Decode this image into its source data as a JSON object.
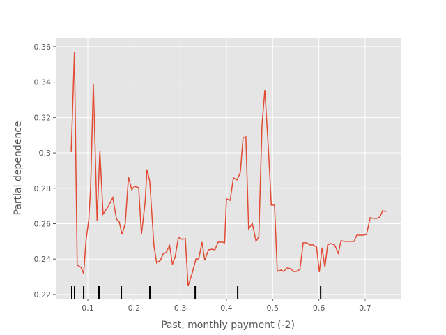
{
  "chart_data": {
    "type": "line",
    "xlabel": "Past, monthly payment (-2)",
    "ylabel": "Partial dependence",
    "color": "#e24a33",
    "grid": true,
    "xlim": [
      0.0306,
      0.777
    ],
    "ylim": [
      0.2176,
      0.3647
    ],
    "xticks": [
      0.1,
      0.2,
      0.3,
      0.4,
      0.5,
      0.6,
      0.7
    ],
    "yticks": [
      0.22,
      0.24,
      0.26,
      0.28,
      0.3,
      0.32,
      0.34,
      0.36
    ],
    "x": [
      0.064,
      0.071,
      0.077,
      0.085,
      0.091,
      0.096,
      0.102,
      0.106,
      0.112,
      0.12,
      0.126,
      0.133,
      0.145,
      0.154,
      0.162,
      0.168,
      0.174,
      0.181,
      0.188,
      0.195,
      0.201,
      0.21,
      0.216,
      0.224,
      0.228,
      0.234,
      0.243,
      0.249,
      0.257,
      0.263,
      0.269,
      0.277,
      0.283,
      0.289,
      0.296,
      0.304,
      0.311,
      0.317,
      0.326,
      0.334,
      0.34,
      0.347,
      0.353,
      0.361,
      0.369,
      0.375,
      0.382,
      0.391,
      0.396,
      0.4,
      0.408,
      0.415,
      0.423,
      0.43,
      0.436,
      0.442,
      0.448,
      0.456,
      0.464,
      0.47,
      0.477,
      0.483,
      0.491,
      0.497,
      0.504,
      0.51,
      0.518,
      0.524,
      0.531,
      0.539,
      0.545,
      0.551,
      0.559,
      0.566,
      0.574,
      0.58,
      0.587,
      0.595,
      0.601,
      0.607,
      0.613,
      0.619,
      0.626,
      0.634,
      0.642,
      0.648,
      0.655,
      0.663,
      0.67,
      0.676,
      0.682,
      0.69,
      0.696,
      0.703,
      0.711,
      0.718,
      0.726,
      0.732,
      0.738,
      0.746
    ],
    "values": [
      0.3005,
      0.3572,
      0.2366,
      0.2354,
      0.2318,
      0.2504,
      0.2622,
      0.28,
      0.3391,
      0.2618,
      0.3012,
      0.2654,
      0.2701,
      0.2748,
      0.2626,
      0.261,
      0.2539,
      0.2602,
      0.2863,
      0.2792,
      0.2811,
      0.2803,
      0.2539,
      0.2721,
      0.2906,
      0.2839,
      0.2476,
      0.2378,
      0.2393,
      0.2429,
      0.2437,
      0.2476,
      0.237,
      0.2413,
      0.2523,
      0.2512,
      0.2515,
      0.2247,
      0.2322,
      0.2401,
      0.2401,
      0.2496,
      0.2393,
      0.2452,
      0.2456,
      0.2452,
      0.2496,
      0.2496,
      0.2492,
      0.274,
      0.2732,
      0.2859,
      0.2847,
      0.289,
      0.3087,
      0.3091,
      0.2571,
      0.2602,
      0.25,
      0.2527,
      0.3162,
      0.3355,
      0.3012,
      0.2705,
      0.2705,
      0.233,
      0.2338,
      0.233,
      0.235,
      0.2346,
      0.233,
      0.233,
      0.2342,
      0.2492,
      0.2492,
      0.248,
      0.248,
      0.2468,
      0.2326,
      0.2464,
      0.2354,
      0.248,
      0.2488,
      0.248,
      0.2433,
      0.2504,
      0.25,
      0.25,
      0.25,
      0.25,
      0.2535,
      0.2535,
      0.2535,
      0.2539,
      0.2634,
      0.263,
      0.263,
      0.2638,
      0.2673,
      0.2669
    ],
    "rug": [
      0.0653,
      0.0713,
      0.091,
      0.1241,
      0.1724,
      0.2342,
      0.3323,
      0.4243,
      0.6038
    ]
  }
}
